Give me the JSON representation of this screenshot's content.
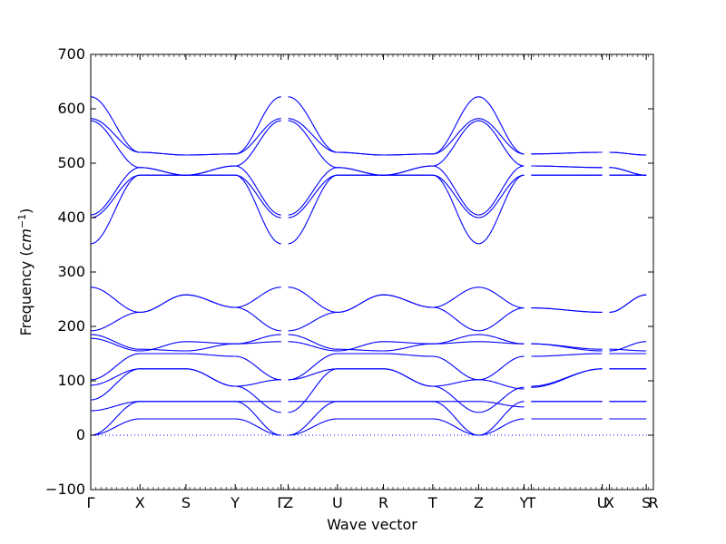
{
  "chart_data": {
    "type": "line",
    "title": "",
    "xlabel": "Wave vector",
    "ylabel_text": "Frequency (",
    "ylabel_unit_base": "cm",
    "ylabel_unit_exp": "−1",
    "ylabel_close": ")",
    "ylim": [
      -100,
      700
    ],
    "yticks": [
      -100,
      0,
      100,
      200,
      300,
      400,
      500,
      600,
      700
    ],
    "xlim": [
      0,
      11.88
    ],
    "xticks": [
      {
        "label": "Γ",
        "x": 0
      },
      {
        "label": "X",
        "x": 1.04
      },
      {
        "label": "S",
        "x": 2.01
      },
      {
        "label": "Y",
        "x": 3.05
      },
      {
        "label": "Γ",
        "x": 4.02
      },
      {
        "label": "Z",
        "x": 4.17
      },
      {
        "label": "U",
        "x": 5.21
      },
      {
        "label": "R",
        "x": 6.18
      },
      {
        "label": "T",
        "x": 7.22
      },
      {
        "label": "Z",
        "x": 8.19
      },
      {
        "label": "Y",
        "x": 9.15
      },
      {
        "label": "T",
        "x": 9.3
      },
      {
        "label": "U",
        "x": 10.8
      },
      {
        "label": "X",
        "x": 10.95
      },
      {
        "label": "S",
        "x": 11.73
      },
      {
        "label": "R",
        "x": 11.88
      }
    ],
    "line_color": "#0000ff",
    "zero_line": {
      "y": 0,
      "style": "dotted"
    },
    "path_segments": [
      {
        "from": "Γ",
        "to": "X",
        "x0": 0,
        "x1": 1.04
      },
      {
        "from": "X",
        "to": "S",
        "x0": 1.04,
        "x1": 2.01
      },
      {
        "from": "S",
        "to": "Y",
        "x0": 2.01,
        "x1": 3.05
      },
      {
        "from": "Y",
        "to": "Γ",
        "x0": 3.05,
        "x1": 4.02
      },
      {
        "from": "Z",
        "to": "U",
        "x0": 4.17,
        "x1": 5.21
      },
      {
        "from": "U",
        "to": "R",
        "x0": 5.21,
        "x1": 6.18
      },
      {
        "from": "R",
        "to": "T",
        "x0": 6.18,
        "x1": 7.22
      },
      {
        "from": "T",
        "to": "Z",
        "x0": 7.22,
        "x1": 8.19
      },
      {
        "from": "Z",
        "to": "Y",
        "x0": 8.19,
        "x1": 9.15
      },
      {
        "from": "T",
        "to": "U",
        "x0": 9.3,
        "x1": 10.8
      },
      {
        "from": "X",
        "to": "S",
        "x0": 10.95,
        "x1": 11.73
      }
    ],
    "series": [
      {
        "values": [
          [
            0,
            0
          ],
          [
            1.04,
            30
          ],
          [
            2.01,
            30
          ],
          [
            3.05,
            30
          ],
          [
            4.02,
            0
          ],
          [
            4.17,
            0
          ],
          [
            5.21,
            30
          ],
          [
            6.18,
            30
          ],
          [
            7.22,
            30
          ],
          [
            8.19,
            0
          ],
          [
            9.15,
            30
          ],
          [
            9.3,
            30
          ],
          [
            10.8,
            30
          ],
          [
            10.95,
            30
          ],
          [
            11.73,
            30
          ]
        ]
      },
      {
        "values": [
          [
            0,
            0
          ],
          [
            1.04,
            62
          ],
          [
            2.01,
            62
          ],
          [
            3.05,
            62
          ],
          [
            4.02,
            0
          ],
          [
            4.17,
            0
          ],
          [
            5.21,
            62
          ],
          [
            6.18,
            62
          ],
          [
            7.22,
            62
          ],
          [
            8.19,
            0
          ],
          [
            9.15,
            62
          ],
          [
            9.3,
            62
          ],
          [
            10.8,
            62
          ],
          [
            10.95,
            62
          ],
          [
            11.73,
            62
          ]
        ]
      },
      {
        "values": [
          [
            0,
            45
          ],
          [
            1.04,
            62
          ],
          [
            2.01,
            62
          ],
          [
            3.05,
            62
          ],
          [
            4.02,
            62
          ],
          [
            4.17,
            62
          ],
          [
            5.21,
            62
          ],
          [
            6.18,
            62
          ],
          [
            7.22,
            62
          ],
          [
            8.19,
            62
          ],
          [
            9.15,
            52
          ],
          [
            9.3,
            62
          ],
          [
            10.8,
            62
          ],
          [
            10.95,
            62
          ],
          [
            11.73,
            62
          ]
        ]
      },
      {
        "values": [
          [
            0,
            65
          ],
          [
            1.04,
            122
          ],
          [
            2.01,
            122
          ],
          [
            3.05,
            90
          ],
          [
            4.02,
            42
          ],
          [
            4.17,
            42
          ],
          [
            5.21,
            122
          ],
          [
            6.18,
            122
          ],
          [
            7.22,
            90
          ],
          [
            8.19,
            42
          ],
          [
            9.15,
            88
          ],
          [
            9.3,
            88
          ],
          [
            10.8,
            122
          ],
          [
            10.95,
            122
          ],
          [
            11.73,
            122
          ]
        ]
      },
      {
        "values": [
          [
            0,
            92
          ],
          [
            1.04,
            122
          ],
          [
            2.01,
            122
          ],
          [
            3.05,
            90
          ],
          [
            4.02,
            102
          ],
          [
            4.17,
            102
          ],
          [
            5.21,
            122
          ],
          [
            6.18,
            122
          ],
          [
            7.22,
            90
          ],
          [
            8.19,
            102
          ],
          [
            9.15,
            85
          ],
          [
            9.3,
            90
          ],
          [
            10.8,
            122
          ],
          [
            10.95,
            122
          ],
          [
            11.73,
            122
          ]
        ]
      },
      {
        "values": [
          [
            0,
            102
          ],
          [
            1.04,
            150
          ],
          [
            2.01,
            150
          ],
          [
            3.05,
            145
          ],
          [
            4.02,
            102
          ],
          [
            4.17,
            102
          ],
          [
            5.21,
            150
          ],
          [
            6.18,
            150
          ],
          [
            7.22,
            145
          ],
          [
            8.19,
            102
          ],
          [
            9.15,
            145
          ],
          [
            9.3,
            145
          ],
          [
            10.8,
            150
          ],
          [
            10.95,
            150
          ],
          [
            11.73,
            150
          ]
        ]
      },
      {
        "values": [
          [
            0,
            178
          ],
          [
            1.04,
            155
          ],
          [
            2.01,
            172
          ],
          [
            3.05,
            168
          ],
          [
            4.02,
            172
          ],
          [
            4.17,
            172
          ],
          [
            5.21,
            155
          ],
          [
            6.18,
            172
          ],
          [
            7.22,
            168
          ],
          [
            8.19,
            172
          ],
          [
            9.15,
            168
          ],
          [
            9.3,
            168
          ],
          [
            10.8,
            155
          ],
          [
            10.95,
            155
          ],
          [
            11.73,
            172
          ]
        ]
      },
      {
        "values": [
          [
            0,
            185
          ],
          [
            1.04,
            158
          ],
          [
            2.01,
            155
          ],
          [
            3.05,
            168
          ],
          [
            4.02,
            185
          ],
          [
            4.17,
            185
          ],
          [
            5.21,
            158
          ],
          [
            6.18,
            155
          ],
          [
            7.22,
            168
          ],
          [
            8.19,
            185
          ],
          [
            9.15,
            168
          ],
          [
            9.3,
            168
          ],
          [
            10.8,
            158
          ],
          [
            10.95,
            158
          ],
          [
            11.73,
            155
          ]
        ]
      },
      {
        "values": [
          [
            0,
            192
          ],
          [
            1.04,
            226
          ],
          [
            2.01,
            258
          ],
          [
            3.05,
            235
          ],
          [
            4.02,
            192
          ],
          [
            4.17,
            192
          ],
          [
            5.21,
            226
          ],
          [
            6.18,
            258
          ],
          [
            7.22,
            235
          ],
          [
            8.19,
            192
          ],
          [
            9.15,
            234
          ],
          [
            9.3,
            234
          ],
          [
            10.8,
            226
          ],
          [
            10.95,
            226
          ],
          [
            11.73,
            258
          ]
        ]
      },
      {
        "values": [
          [
            0,
            272
          ],
          [
            1.04,
            226
          ],
          [
            2.01,
            258
          ],
          [
            3.05,
            235
          ],
          [
            4.02,
            272
          ],
          [
            4.17,
            272
          ],
          [
            5.21,
            226
          ],
          [
            6.18,
            258
          ],
          [
            7.22,
            235
          ],
          [
            8.19,
            272
          ],
          [
            9.15,
            234
          ],
          [
            9.3,
            234
          ],
          [
            10.8,
            226
          ],
          [
            10.95,
            226
          ],
          [
            11.73,
            258
          ]
        ]
      },
      {
        "values": [
          [
            0,
            352
          ],
          [
            1.04,
            478
          ],
          [
            2.01,
            478
          ],
          [
            3.05,
            478
          ],
          [
            4.02,
            352
          ],
          [
            4.17,
            352
          ],
          [
            5.21,
            478
          ],
          [
            6.18,
            478
          ],
          [
            7.22,
            478
          ],
          [
            8.19,
            352
          ],
          [
            9.15,
            478
          ],
          [
            9.3,
            478
          ],
          [
            10.8,
            478
          ],
          [
            10.95,
            478
          ],
          [
            11.73,
            478
          ]
        ]
      },
      {
        "values": [
          [
            0,
            400
          ],
          [
            1.04,
            478
          ],
          [
            2.01,
            478
          ],
          [
            3.05,
            478
          ],
          [
            4.02,
            400
          ],
          [
            4.17,
            400
          ],
          [
            5.21,
            478
          ],
          [
            6.18,
            478
          ],
          [
            7.22,
            478
          ],
          [
            8.19,
            400
          ],
          [
            9.15,
            478
          ],
          [
            9.3,
            478
          ],
          [
            10.8,
            478
          ],
          [
            10.95,
            478
          ],
          [
            11.73,
            478
          ]
        ]
      },
      {
        "values": [
          [
            0,
            405
          ],
          [
            1.04,
            492
          ],
          [
            2.01,
            478
          ],
          [
            3.05,
            495
          ],
          [
            4.02,
            405
          ],
          [
            4.17,
            405
          ],
          [
            5.21,
            492
          ],
          [
            6.18,
            478
          ],
          [
            7.22,
            495
          ],
          [
            8.19,
            405
          ],
          [
            9.15,
            495
          ],
          [
            9.3,
            495
          ],
          [
            10.8,
            492
          ],
          [
            10.95,
            492
          ],
          [
            11.73,
            478
          ]
        ]
      },
      {
        "values": [
          [
            0,
            578
          ],
          [
            1.04,
            492
          ],
          [
            2.01,
            478
          ],
          [
            3.05,
            495
          ],
          [
            4.02,
            578
          ],
          [
            4.17,
            578
          ],
          [
            5.21,
            492
          ],
          [
            6.18,
            478
          ],
          [
            7.22,
            495
          ],
          [
            8.19,
            578
          ],
          [
            9.15,
            495
          ],
          [
            9.3,
            495
          ],
          [
            10.8,
            492
          ],
          [
            10.95,
            492
          ],
          [
            11.73,
            478
          ]
        ]
      },
      {
        "values": [
          [
            0,
            582
          ],
          [
            1.04,
            520
          ],
          [
            2.01,
            515
          ],
          [
            3.05,
            517
          ],
          [
            4.02,
            582
          ],
          [
            4.17,
            582
          ],
          [
            5.21,
            520
          ],
          [
            6.18,
            515
          ],
          [
            7.22,
            517
          ],
          [
            8.19,
            582
          ],
          [
            9.15,
            517
          ],
          [
            9.3,
            517
          ],
          [
            10.8,
            520
          ],
          [
            10.95,
            520
          ],
          [
            11.73,
            515
          ]
        ]
      },
      {
        "values": [
          [
            0,
            622
          ],
          [
            1.04,
            520
          ],
          [
            2.01,
            515
          ],
          [
            3.05,
            517
          ],
          [
            4.02,
            622
          ],
          [
            4.17,
            622
          ],
          [
            5.21,
            520
          ],
          [
            6.18,
            515
          ],
          [
            7.22,
            517
          ],
          [
            8.19,
            622
          ],
          [
            9.15,
            517
          ],
          [
            9.3,
            517
          ],
          [
            10.8,
            520
          ],
          [
            10.95,
            520
          ],
          [
            11.73,
            515
          ]
        ]
      }
    ]
  }
}
